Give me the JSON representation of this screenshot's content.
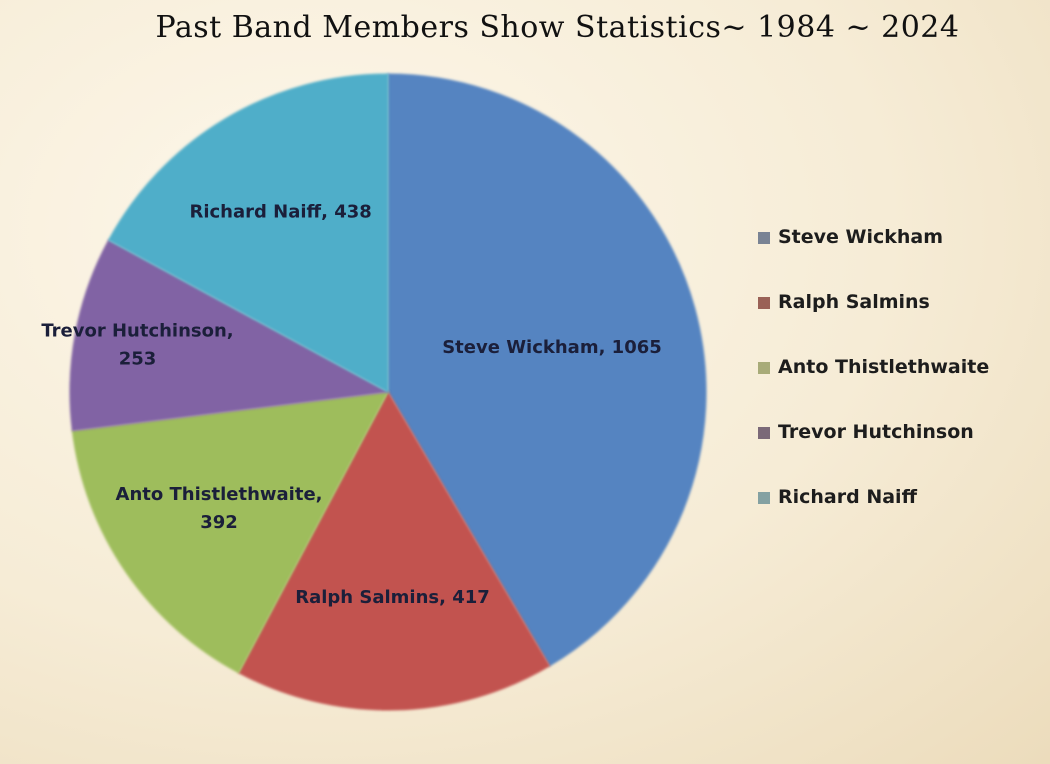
{
  "chart_data": {
    "type": "pie",
    "title": "Past Band Members  Show Statistics~ 1984 ~ 2024",
    "slices": [
      {
        "name": "Steve Wickham",
        "value": 1065,
        "label_lines": [
          "Steve Wickham, 1065"
        ],
        "color": "#5584c1",
        "legend_color": "#7a8394"
      },
      {
        "name": "Ralph Salmins",
        "value": 417,
        "label_lines": [
          "Ralph Salmins, 417"
        ],
        "color": "#c25250",
        "legend_color": "#9a6156"
      },
      {
        "name": "Anto Thistlethwaite",
        "value": 392,
        "label_lines": [
          "Anto Thistlethwaite,",
          "392"
        ],
        "color": "#9ebd5b",
        "legend_color": "#a8ab78"
      },
      {
        "name": "Trevor Hutchinson",
        "value": 253,
        "label_lines": [
          "Trevor Hutchinson,",
          "253"
        ],
        "color": "#8163a4",
        "legend_color": "#7b6978"
      },
      {
        "name": "Richard Naiff",
        "value": 438,
        "label_lines": [
          "Richard Naiff, 438"
        ],
        "color": "#50aec9",
        "legend_color": "#84a1a2"
      }
    ],
    "legend_position": "right"
  }
}
